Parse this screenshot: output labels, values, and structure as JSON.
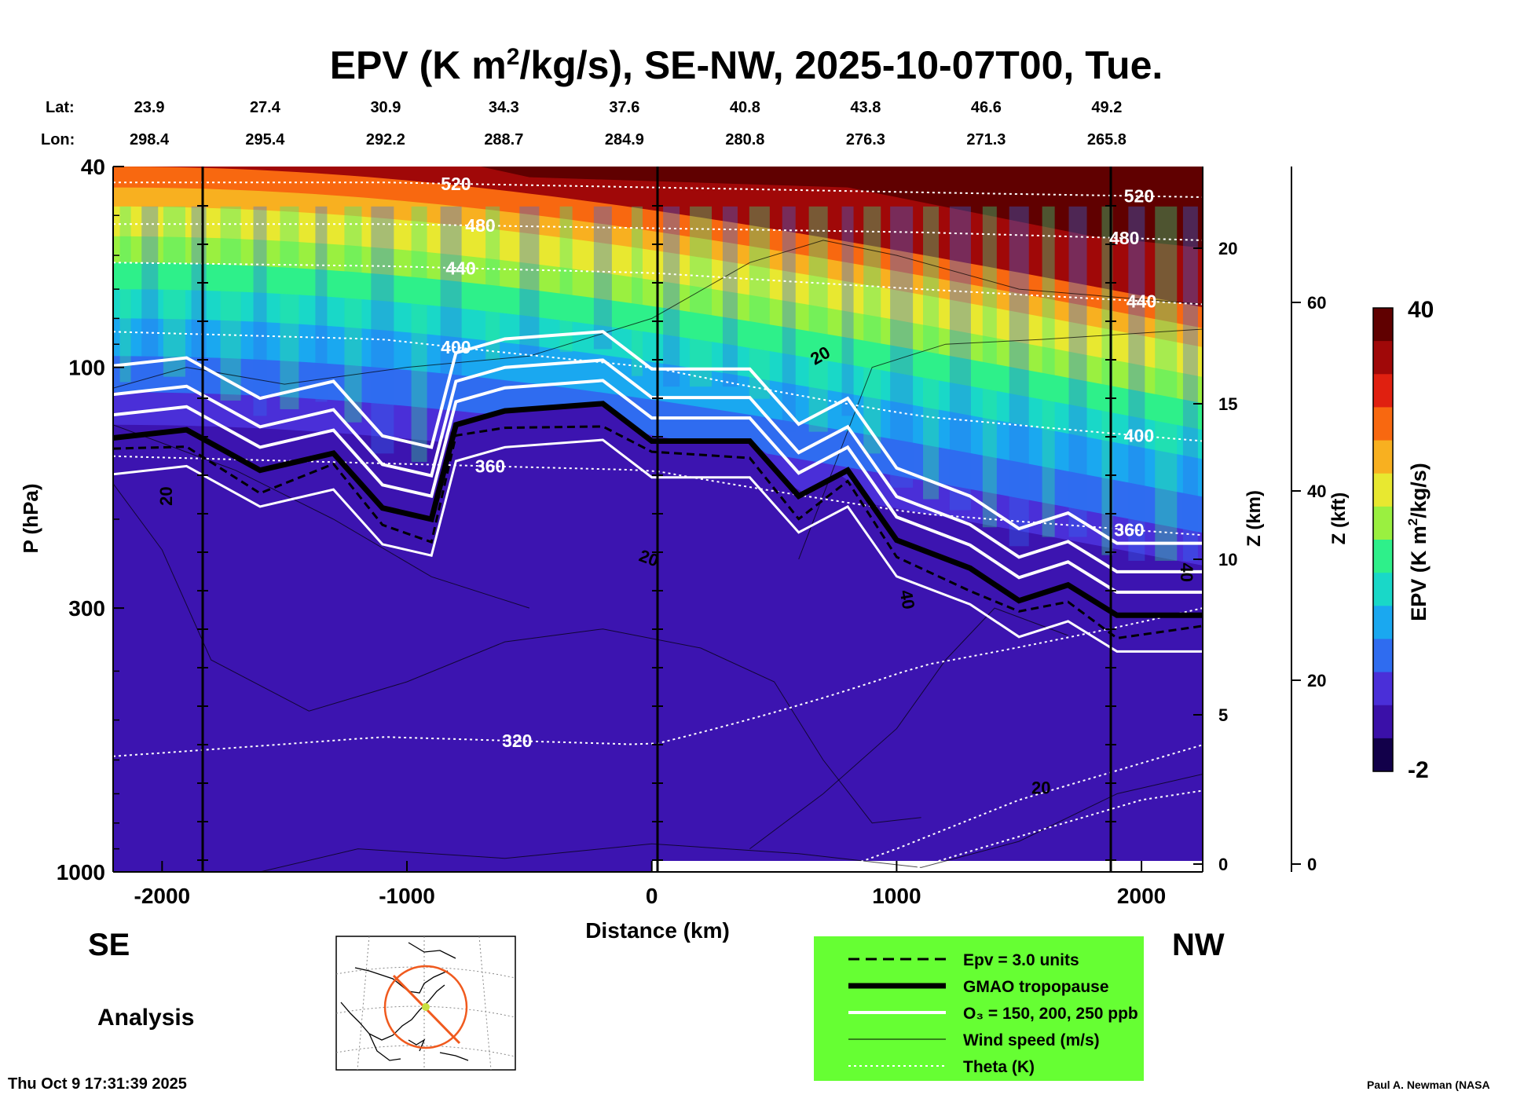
{
  "chart_data": {
    "type": "heatmap",
    "title_pre": "EPV (K m",
    "title_sup": "2",
    "title_post": "/kg/s), SE-NW, 2025-10-07T00, Tue.",
    "xlabel": "Distance (km)",
    "ylabel": "P (hPa)",
    "y2label": "Z (km)",
    "y3label": "Z (kft)",
    "xlim": [
      -2200,
      2250
    ],
    "x_ticks": [
      "-2000",
      "-1000",
      "0",
      "1000",
      "2000"
    ],
    "y_scale": "log",
    "ylim": [
      1000,
      40
    ],
    "y_ticks": [
      "40",
      "100",
      "300",
      "1000"
    ],
    "z_km_ticks": [
      "20",
      "15",
      "10",
      "5",
      "0"
    ],
    "z_kft_ticks": [
      "60",
      "40",
      "20",
      "0"
    ],
    "lat_label": "Lat:",
    "lon_label": "Lon:",
    "lat_values": [
      "23.9",
      "27.4",
      "30.9",
      "34.3",
      "37.6",
      "40.8",
      "43.8",
      "46.6",
      "49.2"
    ],
    "lon_values": [
      "298.4",
      "295.4",
      "292.2",
      "288.7",
      "284.9",
      "280.8",
      "276.3",
      "271.3",
      "265.8"
    ],
    "left_end": "SE",
    "right_end": "NW",
    "mode_label": "Analysis",
    "timestamp": "Thu Oct  9 17:31:39 2025",
    "credit": "Paul A. Newman (NASA",
    "colorbar": {
      "label_pre": "EPV (K m",
      "label_sup": "2",
      "label_post": "/kg/s)",
      "max_label": "40",
      "min_label": "-2",
      "range": [
        -2,
        40
      ],
      "colors": [
        "#12004a",
        "#3a10a8",
        "#4a2fd8",
        "#2f6cf0",
        "#1aa8f0",
        "#19d8c8",
        "#2ef08a",
        "#9af040",
        "#e8e830",
        "#f8b020",
        "#f86810",
        "#e02010",
        "#a00808",
        "#600000"
      ]
    },
    "theta_isentropes_K": [
      {
        "label": "520",
        "p_hpa": [
          43,
          43,
          44,
          45,
          46
        ]
      },
      {
        "label": "480",
        "p_hpa": [
          52,
          52,
          53,
          54,
          56
        ]
      },
      {
        "label": "440",
        "p_hpa": [
          62,
          63,
          65,
          70,
          75
        ]
      },
      {
        "label": "400",
        "p_hpa": [
          85,
          88,
          100,
          125,
          140
        ]
      },
      {
        "label": "360",
        "p_hpa": [
          150,
          155,
          160,
          195,
          215
        ]
      },
      {
        "label": "320",
        "p_hpa": [
          590,
          540,
          560,
          390,
          300
        ]
      }
    ],
    "wind_speed_labels": [
      "20",
      "20",
      "40",
      "40",
      "20",
      "20"
    ],
    "tropopause_hpa": {
      "x_km": [
        -2200,
        -1900,
        -1600,
        -1300,
        -1100,
        -900,
        -800,
        -600,
        -200,
        0,
        400,
        600,
        800,
        1000,
        1300,
        1500,
        1700,
        1900,
        2250
      ],
      "p_hpa": [
        138,
        133,
        160,
        148,
        190,
        200,
        130,
        122,
        118,
        140,
        140,
        180,
        160,
        220,
        250,
        290,
        270,
        310,
        310
      ]
    },
    "legend": [
      {
        "style": "dashed",
        "label": "Epv = 3.0 units"
      },
      {
        "style": "thick",
        "label": "GMAO tropopause"
      },
      {
        "style": "white",
        "label": "O₃ = 150, 200, 250 ppb"
      },
      {
        "style": "thin",
        "label": "Wind speed (m/s)"
      },
      {
        "style": "dotted",
        "label": "Theta (K)"
      }
    ],
    "legend_bg": "#66ff33"
  }
}
